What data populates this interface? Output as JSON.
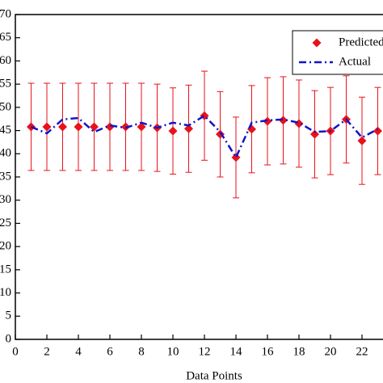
{
  "chart_data": {
    "type": "errorbar-line",
    "x_label": "Data Points",
    "x": [
      1,
      2,
      3,
      4,
      5,
      6,
      7,
      8,
      9,
      10,
      11,
      12,
      13,
      14,
      15,
      16,
      17,
      18,
      19,
      20,
      21,
      22,
      23
    ],
    "series": [
      {
        "name": "Predicted",
        "color": "#e8121a",
        "marker": "diamond",
        "values": [
          45.8,
          45.8,
          45.8,
          45.8,
          45.8,
          45.8,
          45.8,
          45.8,
          45.6,
          44.9,
          45.4,
          48.2,
          44.2,
          39.2,
          45.3,
          47.0,
          47.2,
          46.5,
          44.2,
          44.9,
          47.4,
          42.8,
          44.9
        ],
        "errors": [
          9.4,
          9.4,
          9.4,
          9.4,
          9.4,
          9.4,
          9.4,
          9.4,
          9.4,
          9.3,
          9.4,
          9.6,
          9.2,
          8.7,
          9.4,
          9.4,
          9.4,
          9.4,
          9.4,
          9.4,
          9.4,
          9.4,
          9.4
        ]
      },
      {
        "name": "Actual",
        "color": "#1414c8",
        "line": "dashdot",
        "values": [
          45.8,
          44.4,
          47.4,
          47.7,
          44.7,
          46.1,
          45.6,
          46.7,
          45.6,
          46.7,
          46.1,
          48.2,
          44.7,
          39.2,
          46.7,
          47.2,
          47.4,
          46.7,
          44.7,
          44.9,
          47.4,
          43.5,
          45.3
        ]
      }
    ],
    "xlim": [
      0,
      24
    ],
    "xticks": [
      0,
      2,
      4,
      6,
      8,
      10,
      12,
      14,
      16,
      18,
      20,
      22
    ],
    "ylim": [
      0,
      70
    ],
    "yticks": [
      0,
      5,
      10,
      15,
      20,
      25,
      30,
      35,
      40,
      45,
      50,
      55,
      60,
      65,
      70
    ],
    "legend": "top-right"
  }
}
